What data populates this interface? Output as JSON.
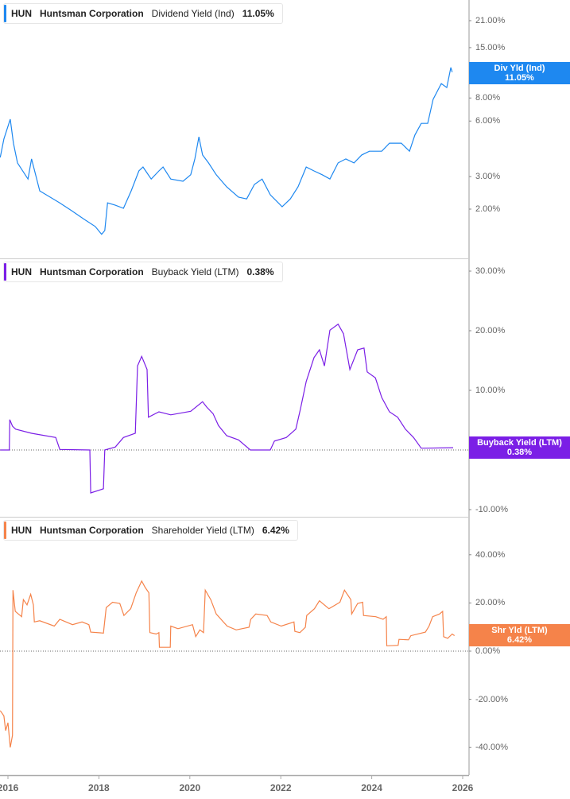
{
  "chart_data": [
    {
      "type": "line",
      "legend": {
        "ticker": "HUN",
        "company": "Huntsman Corporation",
        "metric": "Dividend Yield (Ind)",
        "value": "11.05%"
      },
      "badge": {
        "label": "Div Yld (Ind)",
        "value": "11.05%"
      },
      "color": "#1e88f0",
      "y_scale": "log",
      "y_ticks": [
        "21.00%",
        "15.00%",
        "8.00%",
        "6.00%",
        "3.00%",
        "2.00%"
      ],
      "y_tick_values": [
        21,
        15,
        8,
        6,
        3,
        2
      ],
      "zero_line": false,
      "series": [
        [
          2015.83,
          3.81
        ],
        [
          2015.91,
          4.8
        ],
        [
          2016.05,
          6.14
        ],
        [
          2016.12,
          4.55
        ],
        [
          2016.21,
          3.56
        ],
        [
          2016.44,
          2.91
        ],
        [
          2016.52,
          3.74
        ],
        [
          2016.7,
          2.51
        ],
        [
          2017.14,
          2.16
        ],
        [
          2017.4,
          1.96
        ],
        [
          2017.66,
          1.77
        ],
        [
          2017.92,
          1.61
        ],
        [
          2018.06,
          1.46
        ],
        [
          2018.13,
          1.53
        ],
        [
          2018.19,
          2.16
        ],
        [
          2018.36,
          2.1
        ],
        [
          2018.54,
          2.02
        ],
        [
          2018.71,
          2.51
        ],
        [
          2018.88,
          3.22
        ],
        [
          2018.97,
          3.38
        ],
        [
          2019.15,
          2.91
        ],
        [
          2019.32,
          3.22
        ],
        [
          2019.41,
          3.38
        ],
        [
          2019.58,
          2.91
        ],
        [
          2019.85,
          2.83
        ],
        [
          2020.02,
          3.07
        ],
        [
          2020.11,
          3.74
        ],
        [
          2020.2,
          4.93
        ],
        [
          2020.28,
          3.93
        ],
        [
          2020.41,
          3.56
        ],
        [
          2020.58,
          3.07
        ],
        [
          2020.81,
          2.64
        ],
        [
          2021.07,
          2.32
        ],
        [
          2021.25,
          2.27
        ],
        [
          2021.42,
          2.72
        ],
        [
          2021.59,
          2.91
        ],
        [
          2021.77,
          2.39
        ],
        [
          2022.03,
          2.06
        ],
        [
          2022.21,
          2.27
        ],
        [
          2022.38,
          2.64
        ],
        [
          2022.56,
          3.38
        ],
        [
          2022.73,
          3.22
        ],
        [
          2022.91,
          3.07
        ],
        [
          2023.08,
          2.91
        ],
        [
          2023.26,
          3.56
        ],
        [
          2023.43,
          3.74
        ],
        [
          2023.61,
          3.56
        ],
        [
          2023.78,
          3.93
        ],
        [
          2023.95,
          4.12
        ],
        [
          2024.22,
          4.12
        ],
        [
          2024.39,
          4.55
        ],
        [
          2024.65,
          4.55
        ],
        [
          2024.83,
          4.12
        ],
        [
          2024.95,
          5.04
        ],
        [
          2025.09,
          5.83
        ],
        [
          2025.23,
          5.83
        ],
        [
          2025.35,
          7.86
        ],
        [
          2025.53,
          9.58
        ],
        [
          2025.65,
          9.12
        ],
        [
          2025.74,
          11.7
        ],
        [
          2025.77,
          11.05
        ]
      ]
    },
    {
      "type": "line",
      "legend": {
        "ticker": "HUN",
        "company": "Huntsman Corporation",
        "metric": "Buyback Yield (LTM)",
        "value": "0.38%"
      },
      "badge": {
        "label": "Buyback Yield (LTM)",
        "value": "0.38%"
      },
      "color": "#7b1fe6",
      "y_scale": "linear",
      "y_ticks": [
        "30.00%",
        "20.00%",
        "10.00%",
        "-10.00%"
      ],
      "y_tick_values": [
        30,
        20,
        10,
        -10
      ],
      "zero_line": true,
      "series": [
        [
          2015.83,
          0
        ],
        [
          2016.03,
          0
        ],
        [
          2016.04,
          5.1
        ],
        [
          2016.1,
          4.0
        ],
        [
          2016.17,
          3.5
        ],
        [
          2016.52,
          2.8
        ],
        [
          2017.05,
          2.1
        ],
        [
          2017.14,
          0.1
        ],
        [
          2017.8,
          0
        ],
        [
          2017.82,
          -7.2
        ],
        [
          2018.1,
          -6.5
        ],
        [
          2018.13,
          0
        ],
        [
          2018.36,
          0.5
        ],
        [
          2018.54,
          2.1
        ],
        [
          2018.8,
          2.8
        ],
        [
          2018.85,
          14.1
        ],
        [
          2018.94,
          15.7
        ],
        [
          2019.06,
          13.5
        ],
        [
          2019.09,
          5.5
        ],
        [
          2019.32,
          6.4
        ],
        [
          2019.58,
          5.9
        ],
        [
          2020.02,
          6.5
        ],
        [
          2020.28,
          8.1
        ],
        [
          2020.37,
          7.2
        ],
        [
          2020.51,
          6.1
        ],
        [
          2020.63,
          4.1
        ],
        [
          2020.81,
          2.4
        ],
        [
          2021.07,
          1.7
        ],
        [
          2021.33,
          0
        ],
        [
          2021.77,
          0
        ],
        [
          2021.86,
          1.5
        ],
        [
          2022.12,
          2.1
        ],
        [
          2022.33,
          3.5
        ],
        [
          2022.43,
          6.8
        ],
        [
          2022.56,
          11.5
        ],
        [
          2022.73,
          15.5
        ],
        [
          2022.85,
          16.8
        ],
        [
          2022.96,
          14.1
        ],
        [
          2023.08,
          20.1
        ],
        [
          2023.26,
          21.1
        ],
        [
          2023.38,
          19.5
        ],
        [
          2023.52,
          13.5
        ],
        [
          2023.69,
          16.8
        ],
        [
          2023.83,
          17.1
        ],
        [
          2023.9,
          13.1
        ],
        [
          2024.08,
          12.1
        ],
        [
          2024.22,
          8.8
        ],
        [
          2024.39,
          6.4
        ],
        [
          2024.57,
          5.5
        ],
        [
          2024.74,
          3.5
        ],
        [
          2024.92,
          2.1
        ],
        [
          2025.09,
          0.3
        ],
        [
          2025.79,
          0.38
        ]
      ]
    },
    {
      "type": "line",
      "legend": {
        "ticker": "HUN",
        "company": "Huntsman Corporation",
        "metric": "Shareholder Yield (LTM)",
        "value": "6.42%"
      },
      "badge": {
        "label": "Shr Yld (LTM)",
        "value": "6.42%"
      },
      "color": "#f5834a",
      "y_scale": "linear",
      "y_ticks": [
        "40.00%",
        "20.00%",
        "0.00%",
        "-20.00%",
        "-40.00%"
      ],
      "y_tick_values": [
        40,
        20,
        0,
        -20,
        -40
      ],
      "zero_line": true,
      "series": [
        [
          2015.83,
          -24.7
        ],
        [
          2015.91,
          -26.9
        ],
        [
          2015.95,
          -33
        ],
        [
          2016.0,
          -29.7
        ],
        [
          2016.05,
          -40
        ],
        [
          2016.1,
          -35
        ],
        [
          2016.11,
          25.3
        ],
        [
          2016.16,
          16.5
        ],
        [
          2016.3,
          14.3
        ],
        [
          2016.34,
          21.4
        ],
        [
          2016.42,
          19.2
        ],
        [
          2016.5,
          23.6
        ],
        [
          2016.56,
          19.2
        ],
        [
          2016.58,
          12.1
        ],
        [
          2016.7,
          12.6
        ],
        [
          2017.02,
          10.4
        ],
        [
          2017.14,
          13.2
        ],
        [
          2017.42,
          11
        ],
        [
          2017.63,
          12.1
        ],
        [
          2017.78,
          11
        ],
        [
          2017.82,
          7.9
        ],
        [
          2018.1,
          7.5
        ],
        [
          2018.16,
          18.1
        ],
        [
          2018.3,
          20.3
        ],
        [
          2018.46,
          19.8
        ],
        [
          2018.55,
          14.8
        ],
        [
          2018.7,
          17.6
        ],
        [
          2018.82,
          24.2
        ],
        [
          2018.94,
          29.1
        ],
        [
          2019.02,
          26.4
        ],
        [
          2019.1,
          24.2
        ],
        [
          2019.12,
          7.7
        ],
        [
          2019.26,
          7.1
        ],
        [
          2019.32,
          7.7
        ],
        [
          2019.33,
          1.6
        ],
        [
          2019.57,
          1.6
        ],
        [
          2019.58,
          10.4
        ],
        [
          2019.74,
          9.3
        ],
        [
          2020.06,
          11
        ],
        [
          2020.13,
          6
        ],
        [
          2020.22,
          8.8
        ],
        [
          2020.3,
          7.7
        ],
        [
          2020.34,
          25.3
        ],
        [
          2020.46,
          21.4
        ],
        [
          2020.58,
          15.4
        ],
        [
          2020.82,
          10.4
        ],
        [
          2021.02,
          8.8
        ],
        [
          2021.3,
          9.9
        ],
        [
          2021.34,
          13.2
        ],
        [
          2021.45,
          15.4
        ],
        [
          2021.7,
          14.8
        ],
        [
          2021.78,
          12.1
        ],
        [
          2022.01,
          10.4
        ],
        [
          2022.29,
          12.1
        ],
        [
          2022.31,
          8.2
        ],
        [
          2022.42,
          7.7
        ],
        [
          2022.54,
          9.9
        ],
        [
          2022.57,
          14.8
        ],
        [
          2022.74,
          17.6
        ],
        [
          2022.85,
          20.9
        ],
        [
          2023.06,
          17.6
        ],
        [
          2023.3,
          20.3
        ],
        [
          2023.4,
          25.3
        ],
        [
          2023.54,
          21.4
        ],
        [
          2023.56,
          15.4
        ],
        [
          2023.69,
          19.8
        ],
        [
          2023.8,
          20.3
        ],
        [
          2023.82,
          14.8
        ],
        [
          2024.09,
          14.3
        ],
        [
          2024.25,
          13.2
        ],
        [
          2024.32,
          14.3
        ],
        [
          2024.33,
          2.2
        ],
        [
          2024.58,
          2.4
        ],
        [
          2024.6,
          4.9
        ],
        [
          2024.81,
          4.7
        ],
        [
          2024.86,
          6.4
        ],
        [
          2025.18,
          7.9
        ],
        [
          2025.26,
          10.4
        ],
        [
          2025.34,
          14.3
        ],
        [
          2025.49,
          15.4
        ],
        [
          2025.56,
          16.5
        ],
        [
          2025.58,
          6
        ],
        [
          2025.67,
          5.3
        ],
        [
          2025.77,
          7.1
        ],
        [
          2025.82,
          6.42
        ]
      ]
    }
  ],
  "x_axis": {
    "ticks": [
      "2016",
      "2018",
      "2020",
      "2022",
      "2024",
      "2026"
    ],
    "tick_values": [
      2016,
      2018,
      2020,
      2022,
      2024,
      2026
    ]
  }
}
